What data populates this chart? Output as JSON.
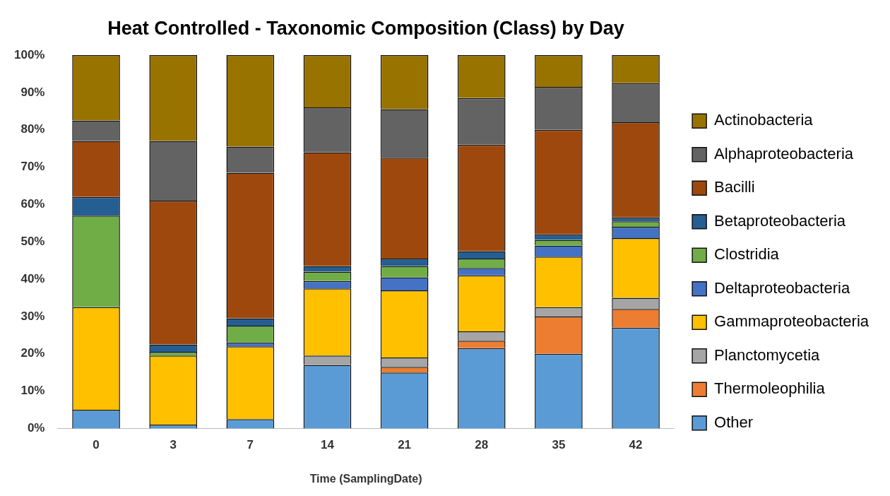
{
  "chart_data": {
    "type": "bar",
    "stacked": true,
    "title": "Heat Controlled - Taxonomic Composition (Class) by Day",
    "xlabel": "Time (SamplingDate)",
    "categories": [
      "0",
      "3",
      "7",
      "14",
      "21",
      "28",
      "35",
      "42"
    ],
    "series": [
      {
        "name": "Other",
        "color": "#5b9bd5",
        "values": [
          5,
          1,
          2.5,
          17,
          15,
          21.5,
          20,
          27
        ]
      },
      {
        "name": "Thermoleophilia",
        "color": "#ed7d31",
        "values": [
          0,
          0,
          0,
          0,
          1.5,
          2,
          10,
          5
        ]
      },
      {
        "name": "Planctomycetia",
        "color": "#a5a5a5",
        "values": [
          null,
          null,
          null,
          2.5,
          2.5,
          2.5,
          2.5,
          3
        ]
      },
      {
        "name": "Gammaproteobacteria",
        "color": "#ffc000",
        "values": [
          27.5,
          18.5,
          19.5,
          18,
          18,
          15,
          13.5,
          16
        ]
      },
      {
        "name": "Deltaproteobacteria",
        "color": "#4472c4",
        "values": [
          0,
          0,
          1,
          2,
          3.5,
          2,
          3,
          3
        ]
      },
      {
        "name": "Clostridia",
        "color": "#70ad47",
        "values": [
          24.5,
          1,
          4.5,
          2.5,
          3,
          2.5,
          1.5,
          1.5
        ]
      },
      {
        "name": "Betaproteobacteria",
        "color": "#255e91",
        "values": [
          5,
          2,
          2,
          1.5,
          2,
          2,
          1.5,
          1
        ]
      },
      {
        "name": "Bacilli",
        "color": "#9e480e",
        "values": [
          15,
          38.5,
          39,
          30.5,
          27,
          28.5,
          28,
          25.5
        ]
      },
      {
        "name": "Alphaproteobacteria",
        "color": "#636363",
        "values": [
          5.5,
          16,
          7,
          12,
          13,
          12.5,
          11.5,
          10.5
        ]
      },
      {
        "name": "Actinobacteria",
        "color": "#997300",
        "values": [
          17.5,
          23,
          24.5,
          14,
          14.5,
          11.5,
          8.5,
          7.5
        ]
      }
    ],
    "ylim": [
      0,
      100
    ],
    "yticks": [
      {
        "value": 0,
        "label": "0%"
      },
      {
        "value": 10,
        "label": "10%"
      },
      {
        "value": 20,
        "label": "20%"
      },
      {
        "value": 30,
        "label": "30%"
      },
      {
        "value": 40,
        "label": "40%"
      },
      {
        "value": 50,
        "label": "50%"
      },
      {
        "value": 60,
        "label": "60%"
      },
      {
        "value": 70,
        "label": "70%"
      },
      {
        "value": 80,
        "label": "80%"
      },
      {
        "value": 90,
        "label": "90%"
      },
      {
        "value": 100,
        "label": "100%"
      }
    ],
    "grid": false,
    "legend": "right"
  }
}
